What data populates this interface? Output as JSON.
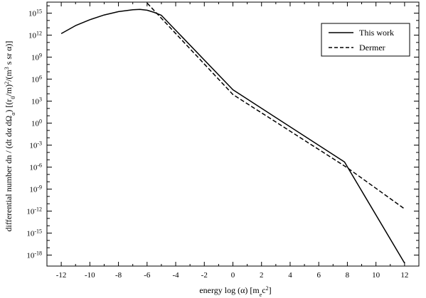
{
  "chart_data": {
    "type": "line",
    "xlabel_parts": [
      "energy log (α) [m",
      "e",
      "c",
      "2",
      "]"
    ],
    "ylabel_parts": [
      "differential number dn / (dt dα dΩ",
      "α",
      ")  [(r",
      "0",
      "/m)",
      "2",
      "/(m",
      "3",
      " s sr α)]"
    ],
    "xlim": [
      -13,
      13
    ],
    "ylim_log10": [
      -19.5,
      16.5
    ],
    "x_ticks": [
      -12,
      -10,
      -8,
      -6,
      -4,
      -2,
      0,
      2,
      4,
      6,
      8,
      10,
      12
    ],
    "y_tick_exponents": [
      -18,
      -15,
      -12,
      -9,
      -6,
      -3,
      0,
      3,
      6,
      9,
      12,
      15
    ],
    "y_scale": "log",
    "legend_position": "top-right",
    "series": [
      {
        "name": "This work",
        "style": "solid",
        "points_x": [
          -12,
          -11,
          -10,
          -9,
          -8,
          -7,
          -6.5,
          -6,
          -5.5,
          -5,
          0,
          7.8,
          12
        ],
        "points_log10_y": [
          12.2,
          13.3,
          14.1,
          14.75,
          15.2,
          15.45,
          15.5,
          15.4,
          15.1,
          14.7,
          4.55,
          -5.3,
          -19.1
        ]
      },
      {
        "name": "Dermer",
        "style": "dashed",
        "points_x": [
          -6.3,
          -5,
          0,
          8,
          12
        ],
        "points_log10_y": [
          17.0,
          14.3,
          3.9,
          -6.1,
          -11.7
        ]
      }
    ]
  }
}
